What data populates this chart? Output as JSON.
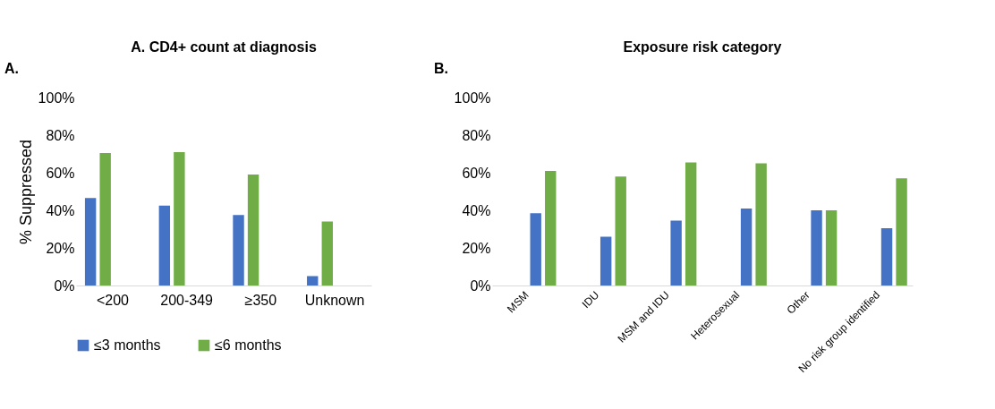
{
  "chart_data": [
    {
      "type": "bar",
      "title": "A.   CD4+ count at diagnosis",
      "ylabel": "% Suppressed",
      "annotations": [
        "A."
      ],
      "categories": [
        "<200",
        "200-349",
        "≥350",
        "Unknown"
      ],
      "series": [
        {
          "name": "≤3 months",
          "color": "#4472c4",
          "values": [
            46.5,
            42.5,
            37.5,
            5
          ]
        },
        {
          "name": "≤6 months",
          "color": "#70ad47",
          "values": [
            70.5,
            71,
            59,
            34
          ]
        }
      ],
      "ylim": [
        0,
        100
      ],
      "yticks": [
        {
          "value": 0,
          "label": "0%"
        },
        {
          "value": 20,
          "label": "20%"
        },
        {
          "value": 40,
          "label": "40%"
        },
        {
          "value": 60,
          "label": "60%"
        },
        {
          "value": 80,
          "label": "80%"
        },
        {
          "value": 100,
          "label": "100%"
        }
      ],
      "grid": false,
      "legend": "bottom"
    },
    {
      "type": "bar",
      "title": "Exposure risk category",
      "annotations": [
        "B."
      ],
      "categories": [
        "MSM",
        "IDU",
        "MSM and IDU",
        "Heterosexual",
        "Other",
        "No risk group identified"
      ],
      "series": [
        {
          "color": "#4472c4",
          "values": [
            38.5,
            26,
            34.5,
            41,
            40,
            30.5
          ]
        },
        {
          "color": "#70ad47",
          "values": [
            61,
            58,
            65.5,
            65,
            40,
            57
          ]
        }
      ],
      "ylim": [
        0,
        100
      ],
      "yticks": [
        {
          "value": 0,
          "label": "0%"
        },
        {
          "value": 20,
          "label": "20%"
        },
        {
          "value": 40,
          "label": "40%"
        },
        {
          "value": 60,
          "label": "60%"
        },
        {
          "value": 80,
          "label": "80%"
        },
        {
          "value": 100,
          "label": "100%"
        }
      ],
      "grid": false,
      "legend": false
    }
  ]
}
